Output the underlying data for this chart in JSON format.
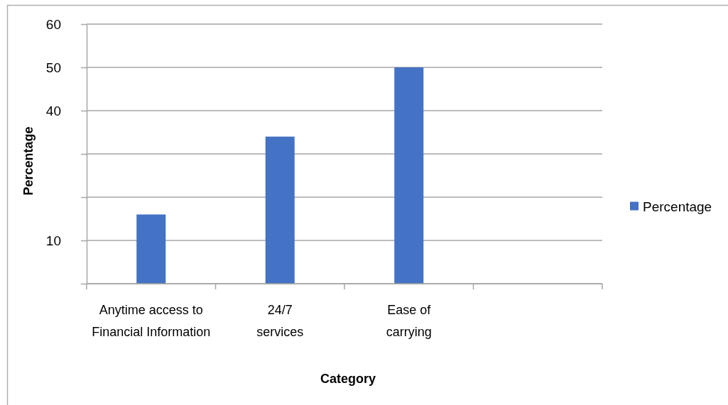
{
  "chart_data": {
    "type": "bar",
    "categories": [
      "Anytime access to\nFinancial Information",
      "24/7\nservices",
      "Ease of\ncarrying",
      null
    ],
    "series": [
      {
        "name": "Percentage",
        "color": "#4472c4",
        "values": [
          16,
          34,
          50,
          null
        ]
      }
    ],
    "ylim": [
      0,
      60
    ],
    "yticks": [
      {
        "value": 0,
        "label": null
      },
      10,
      {
        "value": 20,
        "label": null
      },
      {
        "value": 30,
        "label": null
      },
      40,
      50,
      60
    ],
    "xlabel": "Category",
    "ylabel": "Percentage",
    "grid": "y",
    "legend": "right"
  }
}
